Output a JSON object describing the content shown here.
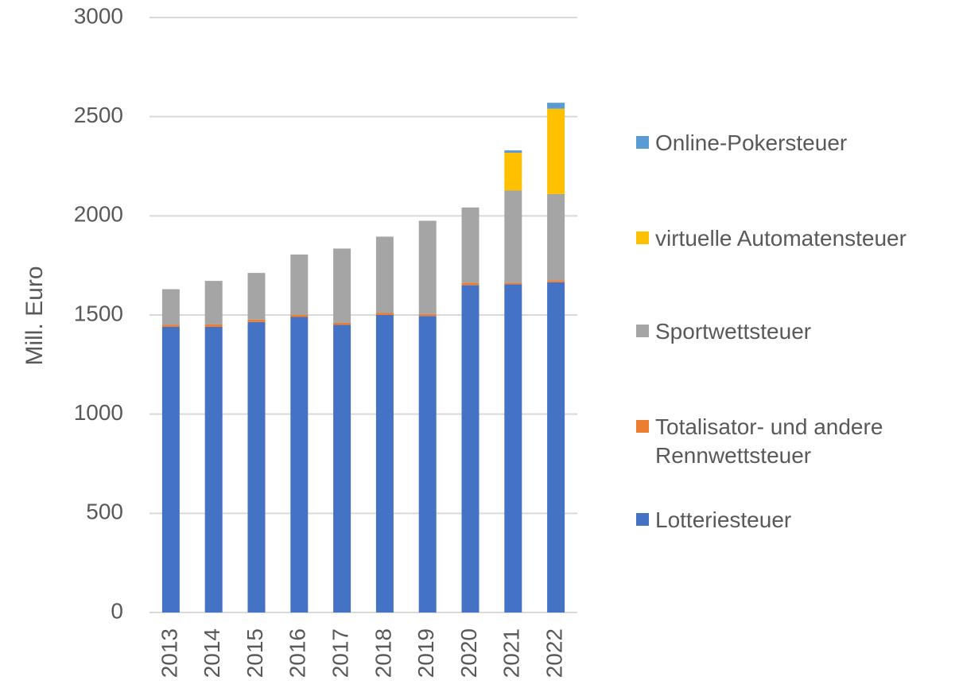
{
  "chart_data": {
    "type": "stacked_bar",
    "y_label": "Mill. Euro",
    "categories": [
      "2013",
      "2014",
      "2015",
      "2016",
      "2017",
      "2018",
      "2019",
      "2020",
      "2021",
      "2022"
    ],
    "series": [
      {
        "name": "Lotteriesteuer",
        "color": "#4472c4",
        "values": [
          1440,
          1440,
          1465,
          1490,
          1450,
          1500,
          1495,
          1650,
          1655,
          1665
        ]
      },
      {
        "name": "Totalisator- und andere Rennwettsteuer",
        "color": "#ed7d31",
        "values": [
          10,
          12,
          12,
          10,
          10,
          10,
          10,
          12,
          8,
          10
        ]
      },
      {
        "name": "Sportwettsteuer",
        "color": "#a5a5a5",
        "values": [
          180,
          220,
          235,
          305,
          375,
          385,
          470,
          380,
          465,
          435
        ]
      },
      {
        "name": "virtuelle Automatensteuer",
        "color": "#ffc000",
        "values": [
          0,
          0,
          0,
          0,
          0,
          0,
          0,
          0,
          190,
          430
        ]
      },
      {
        "name": "Online-Pokersteuer",
        "color": "#5b9bd5",
        "values": [
          0,
          0,
          0,
          0,
          0,
          0,
          0,
          0,
          12,
          30
        ]
      }
    ],
    "ylim": [
      0,
      3000
    ],
    "yticks": [
      0,
      500,
      1000,
      1500,
      2000,
      2500,
      3000
    ],
    "grid": true,
    "legend": "right"
  }
}
